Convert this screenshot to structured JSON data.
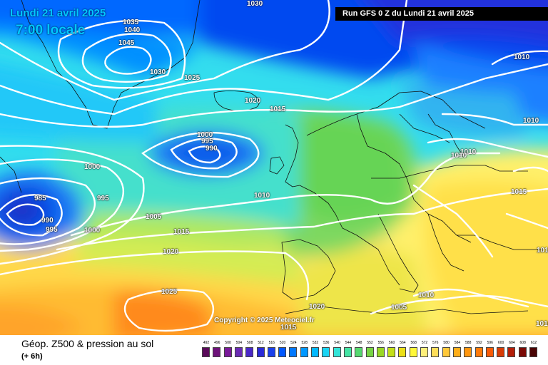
{
  "header": {
    "date": "Lundi 21 avril 2025",
    "time": "7:00 locale",
    "run": "Run GFS 0 Z du Lundi 21 avril 2025"
  },
  "copyright": "Copyright © 2025 Meteociel.fr",
  "footer": {
    "title": "Géop. Z500 & pression au sol",
    "subtitle": "(+ 6h)"
  },
  "isobar_labels": [
    "1035",
    "1040",
    "1045",
    "1030",
    "1025",
    "1020",
    "1015",
    "1000",
    "995",
    "990",
    "1000",
    "995",
    "985",
    "990",
    "995",
    "1000",
    "1005",
    "1015",
    "1020",
    "1010",
    "1025",
    "1020",
    "1015",
    "1010",
    "1005",
    "1010",
    "1010",
    "1010",
    "1010",
    "1015",
    "1010",
    "1010",
    "1030"
  ],
  "legend": {
    "values": [
      "492",
      "496",
      "500",
      "504",
      "508",
      "512",
      "516",
      "520",
      "524",
      "528",
      "532",
      "536",
      "540",
      "544",
      "548",
      "552",
      "556",
      "560",
      "564",
      "568",
      "572",
      "576",
      "580",
      "584",
      "588",
      "592",
      "596",
      "600",
      "604",
      "608",
      "612"
    ],
    "colors": [
      "#5a0a5a",
      "#6e127a",
      "#7a1a9a",
      "#6a2ab4",
      "#4a28c8",
      "#2a2ad8",
      "#1a40ec",
      "#0058ff",
      "#0078ff",
      "#0098ff",
      "#00b8ff",
      "#1ad4f4",
      "#33e4d8",
      "#44e4a4",
      "#55d870",
      "#77d444",
      "#9ad824",
      "#c4e018",
      "#ece018",
      "#fff838",
      "#fff07a",
      "#ffde5a",
      "#ffc83a",
      "#ffae1a",
      "#ff960e",
      "#ff7a0a",
      "#f85a06",
      "#d83c06",
      "#b41e08",
      "#7a0a06",
      "#4a0404"
    ]
  }
}
